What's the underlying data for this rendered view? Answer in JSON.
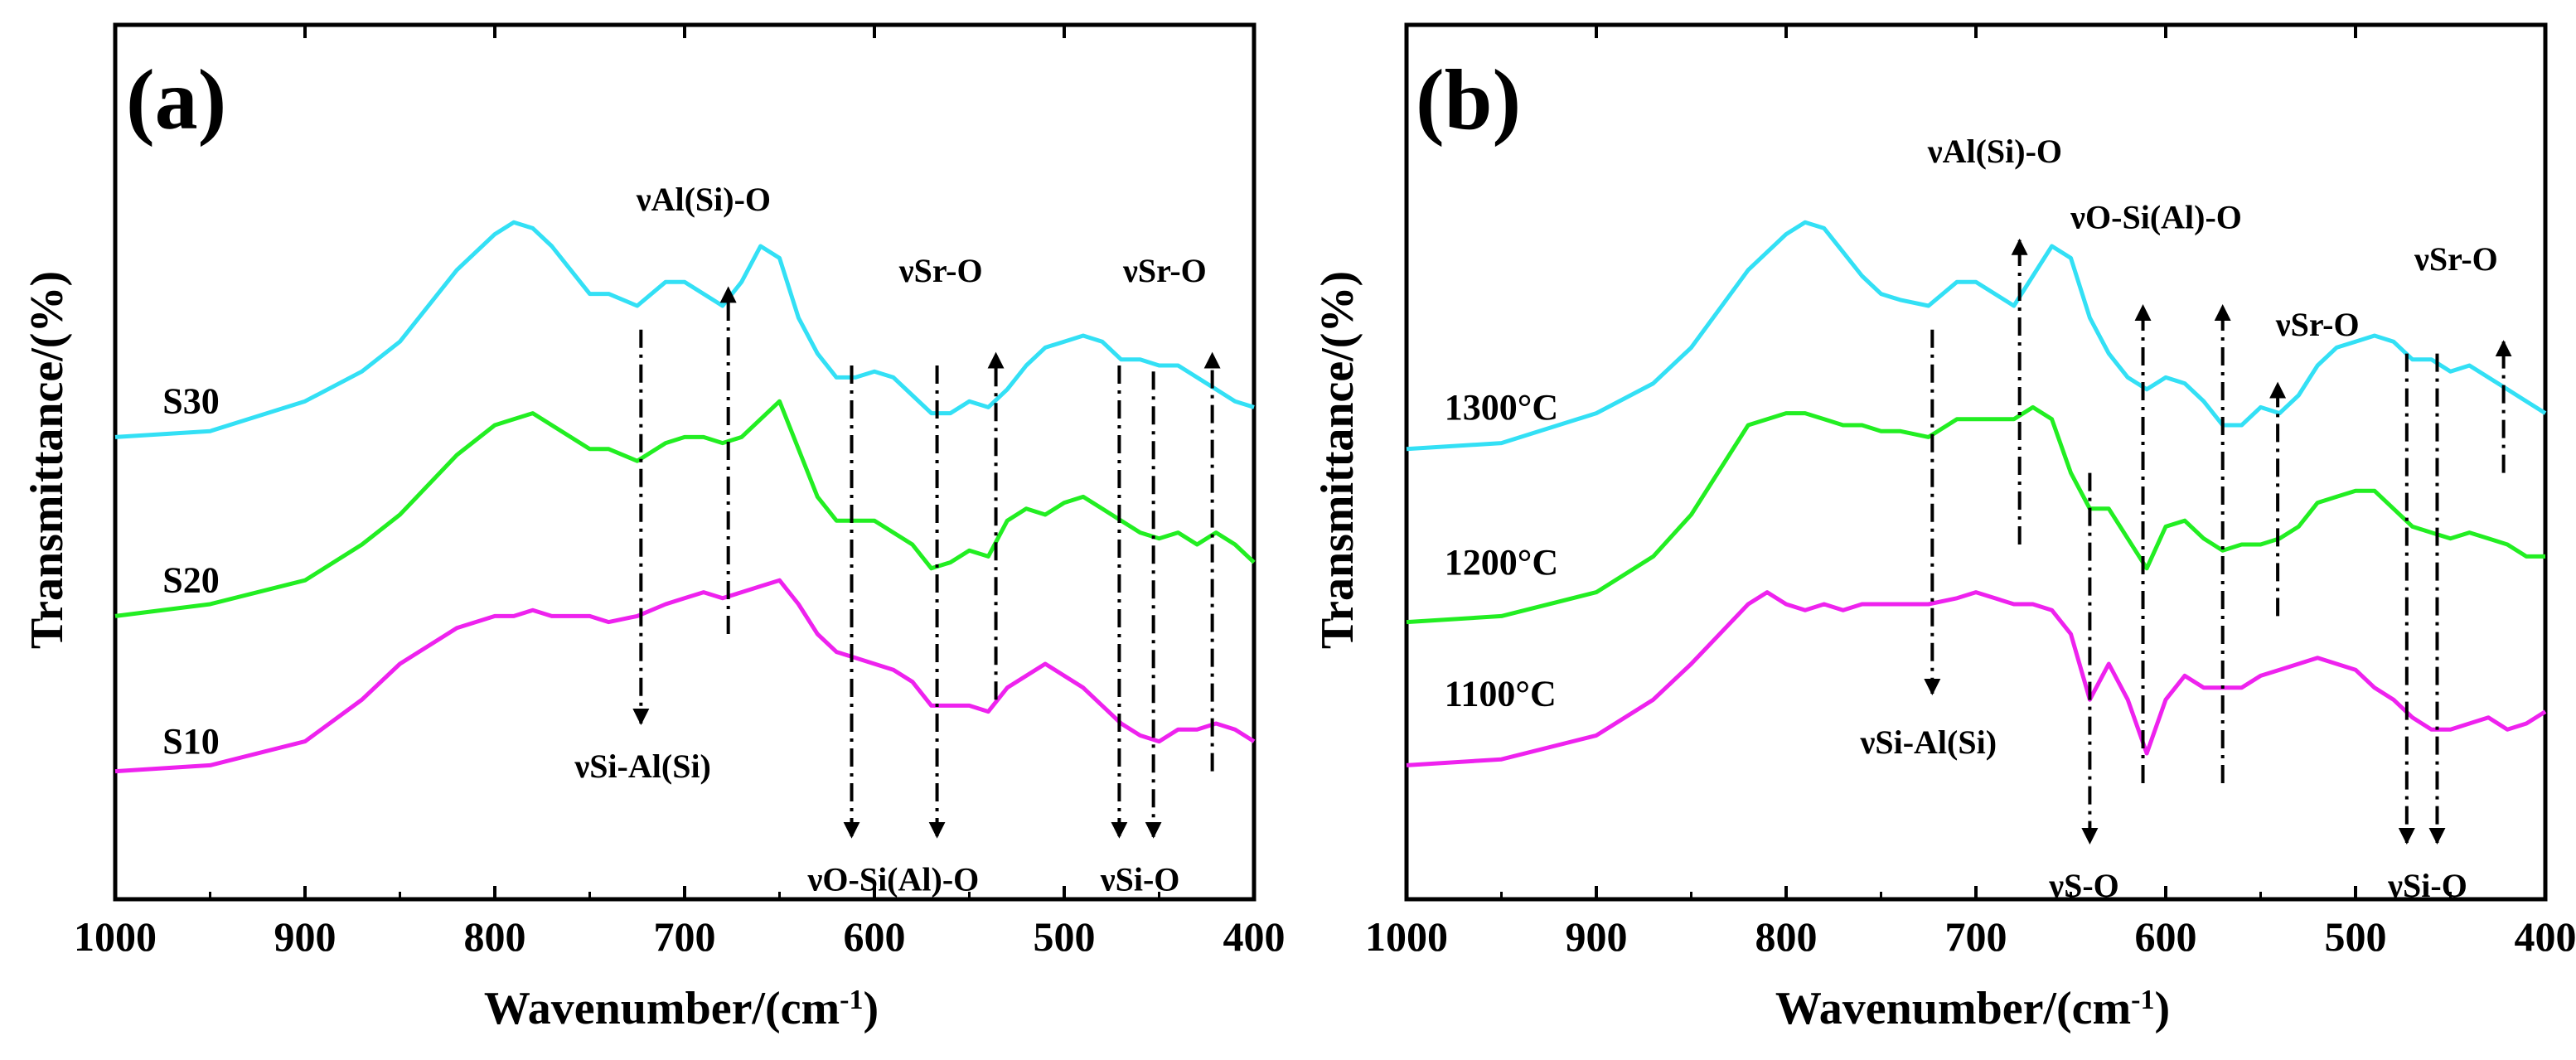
{
  "chart_data": [
    {
      "type": "line",
      "panel_label": "(a)",
      "xlabel": "Wavenumber/(cm",
      "xlabel_sup": "-1",
      "xlabel_suffix": ")",
      "ylabel": "Transmittance/(%)",
      "xlim": [
        1000,
        400
      ],
      "ylim": [
        0,
        100
      ],
      "xticks": [
        1000,
        900,
        800,
        700,
        600,
        500,
        400
      ],
      "yticks_shown": false,
      "series": [
        {
          "name": "S30",
          "color": "#33e0f5",
          "label_x": 975,
          "label_y": 62,
          "x": [
            1000,
            950,
            900,
            870,
            850,
            820,
            800,
            790,
            780,
            770,
            760,
            750,
            740,
            725,
            710,
            700,
            690,
            680,
            670,
            660,
            650,
            640,
            630,
            620,
            610,
            600,
            590,
            580,
            570,
            560,
            550,
            540,
            530,
            520,
            510,
            500,
            490,
            480,
            470,
            460,
            450,
            440,
            430,
            420,
            410,
            400
          ],
          "y": [
            58,
            59,
            64,
            69,
            74,
            86,
            92,
            94,
            93,
            90,
            86,
            82,
            82,
            80,
            84,
            84,
            82,
            80,
            84,
            90,
            88,
            78,
            72,
            68,
            68,
            69,
            68,
            65,
            62,
            62,
            64,
            63,
            66,
            70,
            73,
            74,
            75,
            74,
            71,
            71,
            70,
            70,
            68,
            66,
            64,
            63
          ]
        },
        {
          "name": "S20",
          "color": "#22ee22",
          "label_x": 975,
          "label_y": 32,
          "x": [
            1000,
            950,
            900,
            870,
            850,
            820,
            800,
            790,
            780,
            770,
            760,
            750,
            740,
            725,
            710,
            700,
            690,
            680,
            670,
            660,
            650,
            640,
            630,
            620,
            610,
            600,
            590,
            580,
            570,
            560,
            550,
            540,
            530,
            520,
            510,
            500,
            490,
            480,
            470,
            460,
            450,
            440,
            430,
            420,
            410,
            400
          ],
          "y": [
            28,
            30,
            34,
            40,
            45,
            55,
            60,
            61,
            62,
            60,
            58,
            56,
            56,
            54,
            57,
            58,
            58,
            57,
            58,
            61,
            64,
            56,
            48,
            44,
            44,
            44,
            42,
            40,
            36,
            37,
            39,
            38,
            44,
            46,
            45,
            47,
            48,
            46,
            44,
            42,
            41,
            42,
            40,
            42,
            40,
            37
          ]
        },
        {
          "name": "S10",
          "color": "#ee22ee",
          "label_x": 975,
          "label_y": 5,
          "x": [
            1000,
            950,
            900,
            870,
            850,
            820,
            800,
            790,
            780,
            770,
            760,
            750,
            740,
            725,
            710,
            700,
            690,
            680,
            670,
            660,
            650,
            640,
            630,
            620,
            610,
            600,
            590,
            580,
            570,
            560,
            550,
            540,
            530,
            520,
            510,
            500,
            490,
            480,
            470,
            460,
            450,
            440,
            430,
            420,
            410,
            400
          ],
          "y": [
            2,
            3,
            7,
            14,
            20,
            26,
            28,
            28,
            29,
            28,
            28,
            28,
            27,
            28,
            30,
            31,
            32,
            31,
            32,
            33,
            34,
            30,
            25,
            22,
            21,
            20,
            19,
            17,
            13,
            13,
            13,
            12,
            16,
            18,
            20,
            18,
            16,
            13,
            10,
            8,
            7,
            9,
            9,
            10,
            9,
            7
          ]
        }
      ],
      "annotations": [
        {
          "text": "νAl(Si)-O",
          "x": 677,
          "dir": "up",
          "y_from": 25,
          "y_to": 83,
          "label_x": 690,
          "label_y": 96
        },
        {
          "text": "νSi-Al(Si)",
          "x": 723,
          "dir": "down",
          "y_from": 76,
          "y_to": 10,
          "label_x": 722,
          "label_y": 1
        },
        {
          "text": "νSr-O",
          "x": 536,
          "dir": "up",
          "y_from": 14,
          "y_to": 72,
          "label_x": 565,
          "label_y": 84
        },
        {
          "text": "νSr-O",
          "x": 422,
          "dir": "up",
          "y_from": 2,
          "y_to": 72,
          "label_x": 447,
          "label_y": 84
        },
        {
          "text": "νO-Si(Al)-O",
          "x": 612,
          "dir": "down",
          "y_from": 70,
          "y_to": -9,
          "label_x": 590,
          "label_y": -18
        },
        {
          "text": "",
          "x": 567,
          "dir": "down",
          "y_from": 70,
          "y_to": -9
        },
        {
          "text": "νSi-O",
          "x": 471,
          "dir": "down",
          "y_from": 70,
          "y_to": -9,
          "label_x": 460,
          "label_y": -18
        },
        {
          "text": "",
          "x": 453,
          "dir": "down",
          "y_from": 69,
          "y_to": -9
        }
      ]
    },
    {
      "type": "line",
      "panel_label": "(b)",
      "xlabel": "Wavenumber/(cm",
      "xlabel_sup": "-1",
      "xlabel_suffix": ")",
      "ylabel": "Transmittance/(%)",
      "xlim": [
        1000,
        400
      ],
      "ylim": [
        0,
        100
      ],
      "xticks": [
        1000,
        900,
        800,
        700,
        600,
        500,
        400
      ],
      "yticks_shown": false,
      "series": [
        {
          "name": "1300°C",
          "color": "#33e0f5",
          "label_x": 980,
          "label_y": 61,
          "x": [
            1000,
            950,
            900,
            870,
            850,
            820,
            800,
            790,
            780,
            770,
            760,
            750,
            740,
            725,
            710,
            700,
            690,
            680,
            670,
            660,
            650,
            640,
            630,
            620,
            610,
            600,
            590,
            580,
            570,
            560,
            550,
            540,
            530,
            520,
            510,
            500,
            490,
            480,
            470,
            460,
            450,
            440,
            430,
            420,
            410,
            400
          ],
          "y": [
            56,
            57,
            62,
            67,
            73,
            86,
            92,
            94,
            93,
            89,
            85,
            82,
            81,
            80,
            84,
            84,
            82,
            80,
            85,
            90,
            88,
            78,
            72,
            68,
            66,
            68,
            67,
            64,
            60,
            60,
            63,
            62,
            65,
            70,
            73,
            74,
            75,
            74,
            71,
            71,
            69,
            70,
            68,
            66,
            64,
            62
          ]
        },
        {
          "name": "1200°C",
          "color": "#22ee22",
          "label_x": 980,
          "label_y": 35,
          "x": [
            1000,
            950,
            900,
            870,
            850,
            820,
            800,
            790,
            780,
            770,
            760,
            750,
            740,
            725,
            710,
            700,
            690,
            680,
            670,
            660,
            650,
            640,
            630,
            620,
            610,
            600,
            590,
            580,
            570,
            560,
            550,
            540,
            530,
            520,
            510,
            500,
            490,
            480,
            470,
            460,
            450,
            440,
            430,
            420,
            410,
            400
          ],
          "y": [
            27,
            28,
            32,
            38,
            45,
            60,
            62,
            62,
            61,
            60,
            60,
            59,
            59,
            58,
            61,
            61,
            61,
            61,
            63,
            61,
            52,
            46,
            46,
            41,
            36,
            43,
            44,
            41,
            39,
            40,
            40,
            41,
            43,
            47,
            48,
            49,
            49,
            46,
            43,
            42,
            41,
            42,
            41,
            40,
            38,
            38
          ]
        },
        {
          "name": "1100°C",
          "color": "#ee22ee",
          "label_x": 980,
          "label_y": 13,
          "x": [
            1000,
            950,
            900,
            870,
            850,
            820,
            810,
            800,
            790,
            780,
            770,
            760,
            750,
            740,
            725,
            710,
            700,
            690,
            680,
            670,
            660,
            650,
            640,
            630,
            620,
            610,
            600,
            590,
            580,
            570,
            560,
            550,
            540,
            530,
            520,
            510,
            500,
            490,
            480,
            470,
            460,
            450,
            440,
            430,
            420,
            410,
            400
          ],
          "y": [
            3,
            4,
            8,
            14,
            20,
            30,
            32,
            30,
            29,
            30,
            29,
            30,
            30,
            30,
            30,
            31,
            32,
            31,
            30,
            30,
            29,
            25,
            14,
            20,
            14,
            5,
            14,
            18,
            16,
            16,
            16,
            18,
            19,
            20,
            21,
            20,
            19,
            16,
            14,
            11,
            9,
            9,
            10,
            11,
            9,
            10,
            12
          ]
        }
      ],
      "annotations": [
        {
          "text": "νAl(Si)-O",
          "x": 677,
          "dir": "up",
          "y_from": 40,
          "y_to": 91,
          "label_x": 690,
          "label_y": 104
        },
        {
          "text": "νSi-Al(Si)",
          "x": 723,
          "dir": "down",
          "y_from": 76,
          "y_to": 15,
          "label_x": 725,
          "label_y": 5
        },
        {
          "text": "νO-Si(Al)-O",
          "x": 612,
          "dir": "up",
          "y_from": 0,
          "y_to": 80,
          "label_x": 605,
          "label_y": 93
        },
        {
          "text": "",
          "x": 570,
          "dir": "up",
          "y_from": 0,
          "y_to": 80
        },
        {
          "text": "νSr-O",
          "x": 541,
          "dir": "up",
          "y_from": 28,
          "y_to": 67,
          "label_x": 520,
          "label_y": 75
        },
        {
          "text": "νSr-O",
          "x": 422,
          "dir": "up",
          "y_from": 52,
          "y_to": 74,
          "label_x": 447,
          "label_y": 86
        },
        {
          "text": "νS-O",
          "x": 640,
          "dir": "down",
          "y_from": 52,
          "y_to": -10,
          "label_x": 643,
          "label_y": -19
        },
        {
          "text": "νSi-O",
          "x": 473,
          "dir": "down",
          "y_from": 72,
          "y_to": -10,
          "label_x": 462,
          "label_y": -19
        },
        {
          "text": "",
          "x": 457,
          "dir": "down",
          "y_from": 72,
          "y_to": -10
        }
      ]
    }
  ]
}
